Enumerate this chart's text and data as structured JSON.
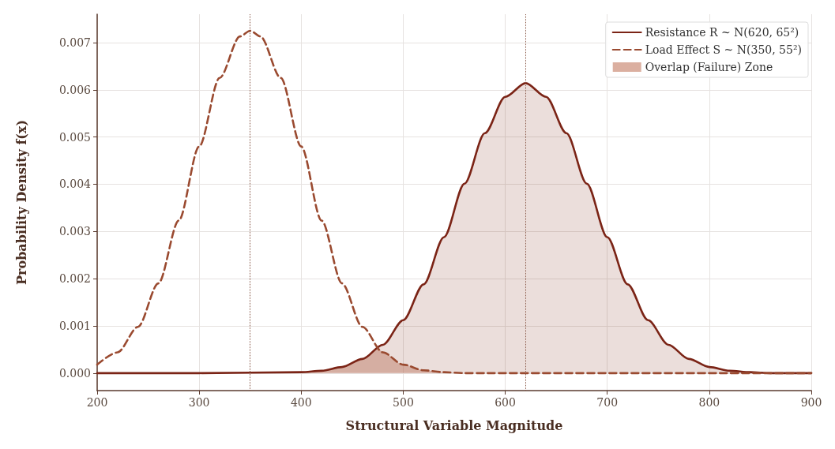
{
  "chart_data": {
    "type": "line",
    "xlabel": "Structural Variable Magnitude",
    "ylabel": "Probability Density f(x)",
    "xlim": [
      200,
      900
    ],
    "xticks": [
      200,
      300,
      400,
      500,
      600,
      700,
      800,
      900
    ],
    "ylim": [
      -0.00037,
      0.0076
    ],
    "yticks": [
      {
        "value": 0,
        "label": "0.000"
      },
      0.001,
      0.002,
      0.003,
      0.004,
      0.005,
      0.006,
      0.007
    ],
    "grid": true,
    "legend": "top right",
    "marker": "none",
    "series": [
      {
        "name": "Resistance R ~ N(620, 65²)",
        "type": "area",
        "color": "#7b2416",
        "line_style": "solid",
        "x": [
          200,
          300,
          400,
          420,
          440,
          460,
          480,
          500,
          520,
          540,
          560,
          580,
          600,
          620,
          640,
          660,
          680,
          700,
          720,
          740,
          760,
          780,
          800,
          820,
          840,
          860,
          900
        ],
        "values": [
          0,
          0,
          2e-05,
          5e-05,
          0.00013,
          0.0003,
          0.0006,
          0.00112,
          0.00188,
          0.00288,
          0.00401,
          0.00508,
          0.00585,
          0.00614,
          0.00585,
          0.00508,
          0.00401,
          0.00288,
          0.00188,
          0.00112,
          0.0006,
          0.0003,
          0.00013,
          5e-05,
          2e-05,
          0,
          0
        ]
      },
      {
        "name": "Load Effect S ~ N(350, 55²)",
        "color": "#9a4a30",
        "line_style": "dashed",
        "x": [
          200,
          220,
          240,
          260,
          280,
          300,
          320,
          340,
          350,
          360,
          380,
          400,
          420,
          440,
          460,
          480,
          500,
          520,
          540,
          560,
          580,
          700,
          800,
          900
        ],
        "values": [
          0.00018,
          0.00044,
          0.00098,
          0.0019,
          0.00323,
          0.0048,
          0.00625,
          0.00713,
          0.00725,
          0.00713,
          0.00625,
          0.0048,
          0.00323,
          0.0019,
          0.00098,
          0.00044,
          0.00018,
          6e-05,
          2e-05,
          0,
          0,
          0,
          0,
          0
        ]
      },
      {
        "name": "Overlap (Failure) Zone",
        "type": "area",
        "color": "#cf9480",
        "line_style": "none",
        "x": [
          400,
          420,
          440,
          460,
          476,
          480,
          500,
          520,
          540,
          560
        ],
        "values": [
          2e-05,
          5e-05,
          0.00013,
          0.0003,
          0.00053,
          0.00044,
          0.00018,
          6e-05,
          2e-05,
          0
        ]
      }
    ],
    "ref_lines": [
      {
        "axis": "x",
        "value": 350,
        "label": null,
        "color": "#8a5a4a",
        "line_style": "dotted"
      },
      {
        "axis": "x",
        "value": 620,
        "label": null,
        "color": "#8a5a4a",
        "line_style": "dotted"
      }
    ]
  }
}
